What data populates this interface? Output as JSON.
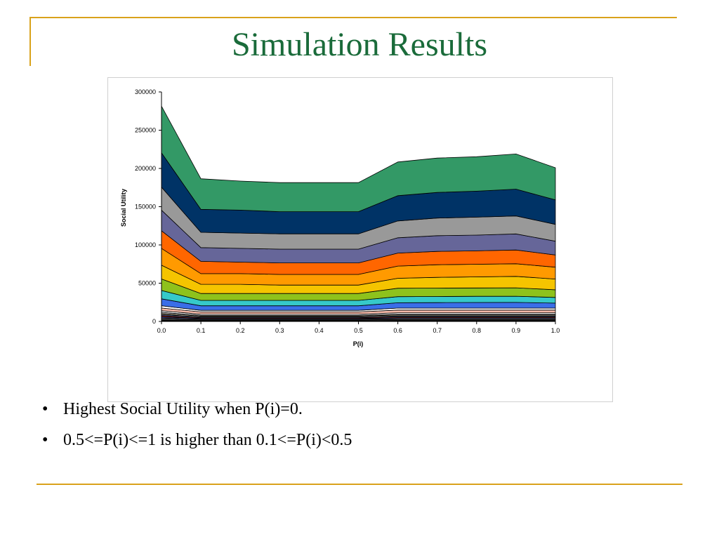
{
  "slide": {
    "title": "Simulation Results",
    "accent_color": "#d9a21b",
    "title_color": "#1a6b3a"
  },
  "bullets": [
    {
      "marker": "•",
      "text": "Highest Social Utility when P(i)=0."
    },
    {
      "marker": "•",
      "text": "0.5<=P(i)<=1 is higher than 0.1<=P(i)<0.5"
    }
  ],
  "chart_data": {
    "type": "area",
    "stacked": true,
    "xlabel": "P(i)",
    "ylabel": "Social Utility",
    "x": [
      0.0,
      0.1,
      0.2,
      0.3,
      0.4,
      0.5,
      0.6,
      0.7,
      0.8,
      0.9,
      1.0
    ],
    "x_tick_labels": [
      "0.0",
      "0.1",
      "0.2",
      "0.3",
      "0.4",
      "0.5",
      "0.6",
      "0.7",
      "0.8",
      "0.9",
      "1.0"
    ],
    "y_ticks": [
      0,
      50000,
      100000,
      150000,
      200000,
      250000,
      300000
    ],
    "ylim": [
      0,
      300000
    ],
    "xlim": [
      0.0,
      1.0
    ],
    "grid": false,
    "legend": "none",
    "boundary_color": "#000000",
    "layers": [
      {
        "color": "#000000",
        "values": [
          1500,
          1000,
          1000,
          1000,
          1000,
          1000,
          1200,
          1200,
          1200,
          1200,
          1200
        ]
      },
      {
        "color": "#444444",
        "values": [
          1500,
          1000,
          1000,
          1000,
          1000,
          1000,
          1200,
          1200,
          1200,
          1200,
          1200
        ]
      },
      {
        "color": "#8a8a8a",
        "values": [
          1500,
          1000,
          1000,
          1000,
          1000,
          1000,
          1200,
          1200,
          1200,
          1200,
          1200
        ]
      },
      {
        "color": "#2d3f8f",
        "values": [
          1500,
          1000,
          1000,
          1000,
          1000,
          1000,
          1200,
          1200,
          1200,
          1200,
          1200
        ]
      },
      {
        "color": "#b03020",
        "values": [
          1500,
          1000,
          1000,
          1000,
          1000,
          1000,
          1200,
          1200,
          1200,
          1200,
          1200
        ]
      },
      {
        "color": "#5a6ab0",
        "values": [
          1500,
          1000,
          1000,
          1000,
          1000,
          1000,
          1200,
          1200,
          1200,
          1200,
          1200
        ]
      },
      {
        "color": "#e0d0a0",
        "values": [
          1500,
          1000,
          1000,
          1000,
          1000,
          1000,
          1200,
          1200,
          1200,
          1200,
          1200
        ]
      },
      {
        "color": "#c8c8c8",
        "values": [
          1500,
          1000,
          1000,
          1000,
          1000,
          1000,
          1200,
          1200,
          1200,
          1200,
          1200
        ]
      },
      {
        "color": "#ffffff",
        "values": [
          2000,
          1500,
          1500,
          1500,
          1500,
          1500,
          1800,
          1800,
          1800,
          1800,
          1800
        ]
      },
      {
        "color": "#f4b8a8",
        "values": [
          3500,
          3000,
          3000,
          3000,
          3000,
          3000,
          3500,
          3500,
          3500,
          3500,
          3500
        ]
      },
      {
        "color": "#ffffff",
        "values": [
          3000,
          2000,
          2000,
          2000,
          2000,
          2000,
          2500,
          2500,
          2500,
          2500,
          2500
        ]
      },
      {
        "color": "#3a6ee8",
        "values": [
          9000,
          6000,
          6000,
          6000,
          6000,
          6000,
          7000,
          7200,
          7400,
          7500,
          6500
        ]
      },
      {
        "color": "#36c9c9",
        "values": [
          11000,
          7000,
          7000,
          7000,
          7000,
          7000,
          8000,
          8000,
          8000,
          8000,
          7500
        ]
      },
      {
        "color": "#8ec21c",
        "values": [
          15000,
          9000,
          9000,
          9000,
          9000,
          9000,
          11000,
          11000,
          11000,
          11000,
          10000
        ]
      },
      {
        "color": "#f5c400",
        "values": [
          18000,
          12000,
          12000,
          11000,
          11000,
          11000,
          13000,
          14000,
          14500,
          15000,
          14000
        ]
      },
      {
        "color": "#ff9a00",
        "values": [
          22000,
          14000,
          14000,
          14000,
          14000,
          14000,
          16000,
          16500,
          16500,
          16500,
          15500
        ]
      },
      {
        "color": "#ff6600",
        "values": [
          23000,
          16000,
          15000,
          15000,
          15000,
          15000,
          17000,
          17500,
          17500,
          18000,
          16000
        ]
      },
      {
        "color": "#666699",
        "values": [
          27000,
          18000,
          18000,
          18000,
          18000,
          18000,
          20000,
          20500,
          20500,
          21000,
          18000
        ]
      },
      {
        "color": "#999999",
        "values": [
          30000,
          20000,
          20000,
          20000,
          20000,
          20000,
          22000,
          23000,
          23500,
          23500,
          22000
        ]
      },
      {
        "color": "#003366",
        "values": [
          45000,
          30000,
          30000,
          29000,
          29000,
          29000,
          33000,
          33500,
          34000,
          35000,
          32000
        ]
      },
      {
        "color": "#339966",
        "values": [
          61000,
          40000,
          38000,
          38000,
          38000,
          38000,
          44000,
          45000,
          45000,
          46000,
          42000
        ]
      }
    ]
  }
}
